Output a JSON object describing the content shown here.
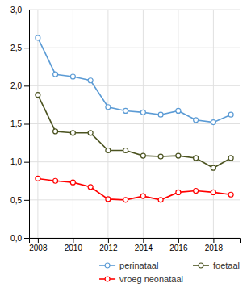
{
  "chart_data": {
    "type": "line",
    "x": [
      2008,
      2009,
      2010,
      2011,
      2012,
      2013,
      2014,
      2015,
      2016,
      2017,
      2018,
      2019
    ],
    "series": [
      {
        "name": "perinataal",
        "color": "#5B9BD5",
        "marker": "circle",
        "values": [
          2.63,
          2.15,
          2.12,
          2.07,
          1.72,
          1.67,
          1.65,
          1.62,
          1.67,
          1.55,
          1.52,
          1.62
        ]
      },
      {
        "name": "foetaal",
        "color": "#4B5320",
        "marker": "circle",
        "values": [
          1.88,
          1.4,
          1.38,
          1.38,
          1.15,
          1.15,
          1.08,
          1.07,
          1.08,
          1.05,
          0.92,
          1.05
        ]
      },
      {
        "name": "vroeg neonataal",
        "color": "#FF0000",
        "marker": "circle",
        "values": [
          0.78,
          0.75,
          0.73,
          0.67,
          0.51,
          0.5,
          0.55,
          0.5,
          0.6,
          0.62,
          0.6,
          0.57
        ]
      }
    ],
    "xlim": [
      2007.5,
      2019.5
    ],
    "xticks": [
      2008,
      2010,
      2012,
      2014,
      2016,
      2018
    ],
    "ylim": [
      0.0,
      3.0
    ],
    "yticks": [
      {
        "value": 0.0,
        "label": "0,0"
      },
      {
        "value": 0.5,
        "label": "0,5"
      },
      {
        "value": 1.0,
        "label": "1,0"
      },
      {
        "value": 1.5,
        "label": "1,5"
      },
      {
        "value": 2.0,
        "label": "2,0"
      },
      {
        "value": 2.5,
        "label": "2,5"
      },
      {
        "value": 3.0,
        "label": "3,0"
      }
    ],
    "grid": true,
    "legend": "bottom"
  }
}
